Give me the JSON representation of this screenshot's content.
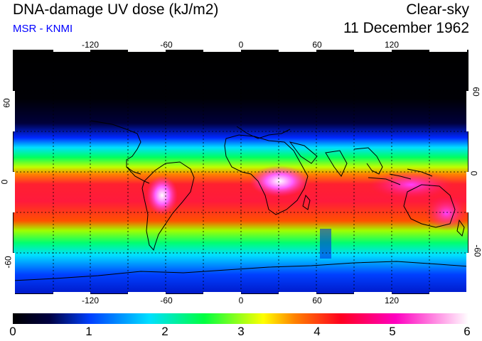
{
  "header": {
    "title": "DNA-damage UV dose (kJ/m2)",
    "source": "MSR - KNMI",
    "condition": "Clear-sky",
    "date": "11 December 1962"
  },
  "map": {
    "lon_ticks": [
      "-120",
      "-60",
      "0",
      "60",
      "120"
    ],
    "lat_ticks_left": [
      "60",
      "0",
      "-60"
    ],
    "lat_ticks_right": [
      "60",
      "0",
      "-60"
    ]
  },
  "colorbar": {
    "labels": [
      "0",
      "1",
      "2",
      "3",
      "4",
      "5",
      "6"
    ],
    "min": 0,
    "max": 6,
    "unit": "kJ/m2"
  },
  "colors": {
    "title": "#000000",
    "source": "#0000ff"
  }
}
